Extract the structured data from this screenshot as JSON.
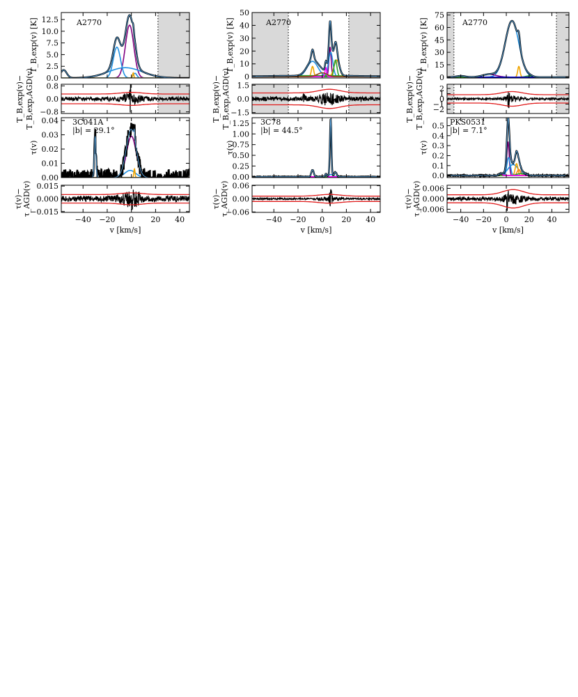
{
  "figure": {
    "xlabel": "v [km/s]",
    "ylabel_tb": "T_B,exp(v) [K]",
    "ylabel_tb_res_1": "T_B,exp(v)−",
    "ylabel_tb_res_2": "T_B,exp,AGD(v)",
    "ylabel_tau": "τ(v)",
    "ylabel_tau_res_1": "τ(v)−",
    "ylabel_tau_res_2": "τ_AGD(v)"
  },
  "chart_data": [
    {
      "type": "line",
      "id": "col1",
      "xlim": [
        -58,
        48
      ],
      "xticks": [
        -40,
        -20,
        0,
        20,
        40
      ],
      "emission": {
        "annotation": "A2770",
        "ylim": [
          0,
          14
        ],
        "yticks": [
          0.0,
          2.5,
          5.0,
          7.5,
          10.0,
          12.5
        ],
        "tick_labels": [
          "0.0",
          "2.5",
          "5.0",
          "7.5",
          "10.0",
          "12.5"
        ],
        "shade": [
          [
            22,
            48
          ]
        ],
        "dotted": [
          22
        ],
        "components": [
          {
            "color": "#800080",
            "amp": 11.3,
            "center": -1.5,
            "sigma": 3.5
          },
          {
            "color": "#1f8fe0",
            "amp": 6.6,
            "center": -12,
            "sigma": 3.0
          },
          {
            "color": "#1f8fe0",
            "amp": 2.2,
            "center": -5,
            "sigma": 14
          },
          {
            "color": "#1f8fe0",
            "amp": 1.7,
            "center": -56,
            "sigma": 2.5
          },
          {
            "color": "#1f8fe0",
            "amp": 1.0,
            "center": 3,
            "sigma": 1.5
          },
          {
            "color": "#f0a500",
            "amp": 1.1,
            "center": 1.5,
            "sigma": 0.5
          }
        ]
      },
      "emission_residual": {
        "ylim": [
          -0.9,
          0.9
        ],
        "yticks": [
          -0.8,
          0.0,
          0.8
        ],
        "tick_labels": [
          "−0.8",
          "0.0",
          "0.8"
        ],
        "envelope_base": 0.3,
        "envelope_peak": 0.1,
        "envelope_center": 0,
        "noise": 0.12,
        "spike": 0.8,
        "spike_center": -1
      },
      "absorption": {
        "annotation": "3C041A",
        "annotation2": "|b| = 29.1°",
        "ylim": [
          0,
          0.042
        ],
        "yticks": [
          0.0,
          0.01,
          0.02,
          0.03,
          0.04
        ],
        "tick_labels": [
          "0.00",
          "0.01",
          "0.02",
          "0.03",
          "0.04"
        ],
        "noise": 0.0035,
        "components": [
          {
            "color": "#1f8fe0",
            "amp": 0.029,
            "center": -30,
            "sigma": 0.7
          },
          {
            "color": "#800080",
            "amp": 0.029,
            "center": 0,
            "sigma": 4.0
          },
          {
            "color": "#1f8fe0",
            "amp": 0.005,
            "center": -1,
            "sigma": 4.5
          },
          {
            "color": "#f0a500",
            "amp": 0.006,
            "center": 2.5,
            "sigma": 0.5
          }
        ]
      },
      "absorption_residual": {
        "ylim": [
          -0.016,
          0.016
        ],
        "yticks": [
          -0.015,
          0.0,
          0.015
        ],
        "tick_labels": [
          "−0.015",
          "0.000",
          "0.015"
        ],
        "envelope_base": 0.005,
        "envelope_peak": 0.002,
        "envelope_center": 0,
        "noise": 0.0035,
        "spike": 0.006,
        "spike_center": 0
      }
    },
    {
      "type": "line",
      "id": "col2",
      "xlim": [
        -58,
        48
      ],
      "xticks": [
        -40,
        -20,
        0,
        20,
        40
      ],
      "emission": {
        "annotation": "A2770",
        "ylim": [
          -1,
          50
        ],
        "yticks": [
          0,
          10,
          20,
          30,
          40,
          50
        ],
        "tick_labels": [
          "0",
          "10",
          "20",
          "30",
          "40",
          "50"
        ],
        "shade": [
          [
            -58,
            -28
          ],
          [
            22,
            48
          ]
        ],
        "dotted": [
          -28,
          22
        ],
        "components": [
          {
            "color": "#800080",
            "amp": 23,
            "center": 6.5,
            "sigma": 0.9
          },
          {
            "color": "#1f8fe0",
            "amp": 19,
            "center": 7,
            "sigma": 1.8
          },
          {
            "color": "#1f8fe0",
            "amp": 12,
            "center": -8,
            "sigma": 4.5
          },
          {
            "color": "#f0a500",
            "amp": 8,
            "center": -8,
            "sigma": 1.0
          },
          {
            "color": "#f0a500",
            "amp": 13,
            "center": 12,
            "sigma": 2.2
          },
          {
            "color": "#2ca02c",
            "amp": 13,
            "center": 11,
            "sigma": 1.2
          },
          {
            "color": "#2ca02c",
            "amp": 0.8,
            "center": -5,
            "sigma": 40
          },
          {
            "color": "#ff00ff",
            "amp": 7,
            "center": 3,
            "sigma": 0.7
          },
          {
            "color": "#8b4513",
            "amp": 3,
            "center": 0,
            "sigma": 4
          }
        ]
      },
      "emission_residual": {
        "ylim": [
          -1.6,
          1.6
        ],
        "yticks": [
          -1.5,
          0.0,
          1.5
        ],
        "tick_labels": [
          "−1.5",
          "0.0",
          "1.5"
        ],
        "envelope_base": 0.65,
        "envelope_peak": 0.4,
        "envelope_center": 6,
        "noise": 0.25,
        "spike": 0.5,
        "spike_center": -15
      },
      "absorption": {
        "annotation": "3C78",
        "annotation2": "|b| = 44.5°",
        "ylim": [
          -0.02,
          1.38
        ],
        "yticks": [
          0.0,
          0.25,
          0.5,
          0.75,
          1.0,
          1.25
        ],
        "tick_labels": [
          "0.00",
          "0.25",
          "0.50",
          "0.75",
          "1.00",
          "1.25"
        ],
        "noise": 0.004,
        "components": [
          {
            "color": "#800080",
            "amp": 1.32,
            "center": 7,
            "sigma": 0.6
          },
          {
            "color": "#f0a500",
            "amp": 0.16,
            "center": -8,
            "sigma": 1.0
          },
          {
            "color": "#1f8fe0",
            "amp": 0.05,
            "center": 7,
            "sigma": 2.0
          },
          {
            "color": "#2ca02c",
            "amp": 0.1,
            "center": 11,
            "sigma": 1.0
          },
          {
            "color": "#ff00ff",
            "amp": 0.06,
            "center": 3,
            "sigma": 0.6
          }
        ]
      },
      "absorption_residual": {
        "ylim": [
          -0.062,
          0.062
        ],
        "yticks": [
          -0.06,
          0.0,
          0.06
        ],
        "tick_labels": [
          "−0.06",
          "0.00",
          "0.06"
        ],
        "envelope_base": 0.012,
        "envelope_peak": 0.008,
        "envelope_center": 6,
        "noise": 0.004,
        "spike": 0.04,
        "spike_center": 7
      }
    },
    {
      "type": "line",
      "id": "col3",
      "xlim": [
        -52,
        55
      ],
      "xticks": [
        -40,
        -20,
        0,
        20,
        40
      ],
      "emission": {
        "annotation": "A2770",
        "ylim": [
          -1,
          78
        ],
        "yticks": [
          0,
          15,
          30,
          45,
          60,
          75
        ],
        "tick_labels": [
          "0",
          "15",
          "30",
          "45",
          "60",
          "75"
        ],
        "shade": [
          [
            -52,
            -46
          ],
          [
            44,
            55
          ]
        ],
        "dotted": [
          -46,
          44
        ],
        "components": [
          {
            "color": "#1f8fe0",
            "amp": 68,
            "center": 5,
            "sigma": 6.0
          },
          {
            "color": "#f0a500",
            "amp": 13,
            "center": 11,
            "sigma": 1.0
          },
          {
            "color": "#800080",
            "amp": 3.5,
            "center": -15,
            "sigma": 6
          },
          {
            "color": "#2ca02c",
            "amp": 1.5,
            "center": 20,
            "sigma": 3
          },
          {
            "color": "#0000cc",
            "amp": 1.5,
            "center": -40,
            "sigma": 4
          }
        ]
      },
      "emission_residual": {
        "ylim": [
          -2.8,
          2.8
        ],
        "yticks": [
          -2,
          -1,
          0,
          1,
          2
        ],
        "tick_labels": [
          "−2",
          "−1",
          "0",
          "1",
          "2"
        ],
        "envelope_base": 0.8,
        "envelope_peak": 0.6,
        "envelope_center": 5,
        "noise": 0.2,
        "spike": 1.5,
        "spike_center": 2
      },
      "absorption": {
        "annotation": "PKS0531",
        "annotation2": "|b| = 7.1°",
        "ylim": [
          -0.02,
          0.58
        ],
        "yticks": [
          0.0,
          0.1,
          0.2,
          0.3,
          0.4,
          0.5
        ],
        "tick_labels": [
          "0.0",
          "0.1",
          "0.2",
          "0.3",
          "0.4",
          "0.5"
        ],
        "noise": 0.0025,
        "components": [
          {
            "color": "#800080",
            "amp": 0.34,
            "center": 1.5,
            "sigma": 1.0
          },
          {
            "color": "#1f8fe0",
            "amp": 0.18,
            "center": 2,
            "sigma": 1.5
          },
          {
            "color": "#1f8fe0",
            "amp": 0.11,
            "center": 6,
            "sigma": 4.5
          },
          {
            "color": "#f0a500",
            "amp": 0.12,
            "center": 9,
            "sigma": 1.2
          },
          {
            "color": "#ff7f0e",
            "amp": 0.06,
            "center": 11,
            "sigma": 1.5
          },
          {
            "color": "#2ca02c",
            "amp": 0.02,
            "center": 13,
            "sigma": 4
          },
          {
            "color": "#ff00ff",
            "amp": 0.015,
            "center": -5,
            "sigma": 1.5
          }
        ]
      },
      "absorption_residual": {
        "ylim": [
          -0.0078,
          0.0078
        ],
        "yticks": [
          -0.006,
          0.0,
          0.006
        ],
        "tick_labels": [
          "−0.006",
          "0.000",
          "0.006"
        ],
        "envelope_base": 0.0023,
        "envelope_peak": 0.003,
        "envelope_center": 6,
        "noise": 0.0011,
        "spike": 0.006,
        "spike_center": 1
      }
    }
  ]
}
